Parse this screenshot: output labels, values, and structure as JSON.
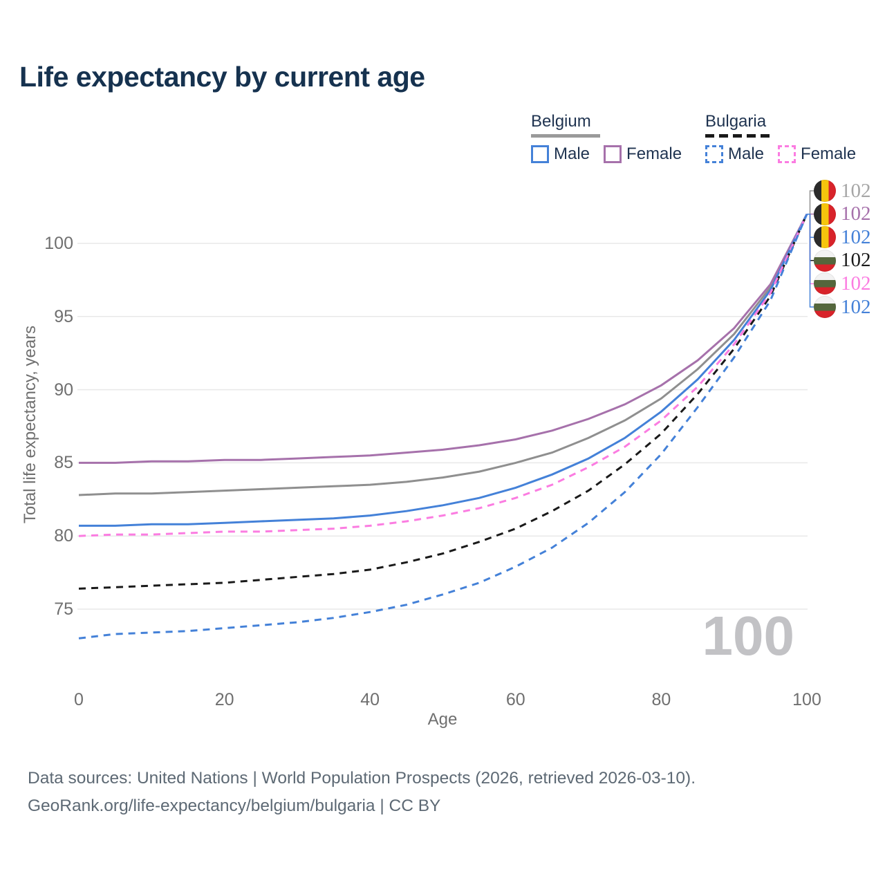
{
  "title": "Life expectancy by current age",
  "legend": {
    "groups": [
      {
        "label": "Belgium",
        "line_style": "solid",
        "underline_series": "belgium-all",
        "items": [
          {
            "label": "Male",
            "series": "belgium-male"
          },
          {
            "label": "Female",
            "series": "belgium-female"
          }
        ]
      },
      {
        "label": "Bulgaria",
        "line_style": "dashed",
        "underline_series": "bulgaria-all",
        "items": [
          {
            "label": "Male",
            "series": "bulgaria-male"
          },
          {
            "label": "Female",
            "series": "bulgaria-female"
          }
        ]
      }
    ]
  },
  "watermark": "100",
  "footer": {
    "line1": "Data sources: United Nations | World Population Prospects (2026, retrieved 2026-03-10).",
    "line2": "GeoRank.org/life-expectancy/belgium/bulgaria | CC BY"
  },
  "chart_data": {
    "type": "line",
    "title": "Life expectancy by current age",
    "xlabel": "Age",
    "ylabel": "Total life expectancy, years",
    "xlim": [
      0,
      100
    ],
    "ylim": [
      72.5,
      102.5
    ],
    "xticks": [
      0,
      20,
      40,
      60,
      80,
      100
    ],
    "yticks": [
      75,
      80,
      85,
      90,
      95,
      100
    ],
    "grid": "horizontal-only",
    "legend_position": "top-right",
    "gridline_color": "#e8e8e8",
    "x": [
      0,
      5,
      10,
      15,
      20,
      25,
      30,
      35,
      40,
      45,
      50,
      55,
      60,
      65,
      70,
      75,
      80,
      85,
      90,
      95,
      100
    ],
    "series": [
      {
        "id": "belgium-all",
        "country": "Belgium",
        "sex": "All",
        "color": "#8f8f8f",
        "label_color": "#a6a6a6",
        "line_style": "solid",
        "flag": "belgium",
        "end_label": "102",
        "values": [
          82.8,
          82.9,
          82.9,
          83.0,
          83.1,
          83.2,
          83.3,
          83.4,
          83.5,
          83.7,
          84.0,
          84.4,
          85.0,
          85.7,
          86.7,
          87.9,
          89.4,
          91.4,
          93.8,
          97.0,
          102
        ]
      },
      {
        "id": "belgium-female",
        "country": "Belgium",
        "sex": "Female",
        "color": "#a671ab",
        "label_color": "#a671ab",
        "line_style": "solid",
        "flag": "belgium",
        "end_label": "102",
        "values": [
          85.0,
          85.0,
          85.1,
          85.1,
          85.2,
          85.2,
          85.3,
          85.4,
          85.5,
          85.7,
          85.9,
          86.2,
          86.6,
          87.2,
          88.0,
          89.0,
          90.3,
          92.0,
          94.2,
          97.2,
          102
        ]
      },
      {
        "id": "belgium-male",
        "country": "Belgium",
        "sex": "Male",
        "color": "#4481d8",
        "label_color": "#4481d8",
        "line_style": "solid",
        "flag": "belgium",
        "end_label": "102",
        "values": [
          80.7,
          80.7,
          80.8,
          80.8,
          80.9,
          81.0,
          81.1,
          81.2,
          81.4,
          81.7,
          82.1,
          82.6,
          83.3,
          84.2,
          85.3,
          86.7,
          88.5,
          90.7,
          93.4,
          96.8,
          102
        ]
      },
      {
        "id": "bulgaria-all",
        "country": "Bulgaria",
        "sex": "All",
        "color": "#1a1a1a",
        "label_color": "#1a1a1a",
        "line_style": "dashed",
        "flag": "bulgaria",
        "end_label": "102",
        "values": [
          76.4,
          76.5,
          76.6,
          76.7,
          76.8,
          77.0,
          77.2,
          77.4,
          77.7,
          78.2,
          78.8,
          79.6,
          80.5,
          81.7,
          83.1,
          84.9,
          87.0,
          89.7,
          92.8,
          96.4,
          102
        ]
      },
      {
        "id": "bulgaria-female",
        "country": "Bulgaria",
        "sex": "Female",
        "color": "#fb7ce1",
        "label_color": "#fb7ce1",
        "line_style": "dashed",
        "flag": "bulgaria",
        "end_label": "102",
        "values": [
          80.0,
          80.1,
          80.1,
          80.2,
          80.3,
          80.3,
          80.4,
          80.5,
          80.7,
          81.0,
          81.4,
          81.9,
          82.6,
          83.5,
          84.7,
          86.1,
          87.9,
          90.2,
          93.1,
          96.6,
          102
        ]
      },
      {
        "id": "bulgaria-male",
        "country": "Bulgaria",
        "sex": "Male",
        "color": "#4481d8",
        "label_color": "#4481d8",
        "line_style": "dashed",
        "flag": "bulgaria",
        "end_label": "102",
        "values": [
          73.0,
          73.3,
          73.4,
          73.5,
          73.7,
          73.9,
          74.1,
          74.4,
          74.8,
          75.3,
          76.0,
          76.8,
          77.9,
          79.2,
          80.9,
          83.0,
          85.6,
          88.8,
          92.2,
          96.1,
          102
        ]
      }
    ]
  }
}
